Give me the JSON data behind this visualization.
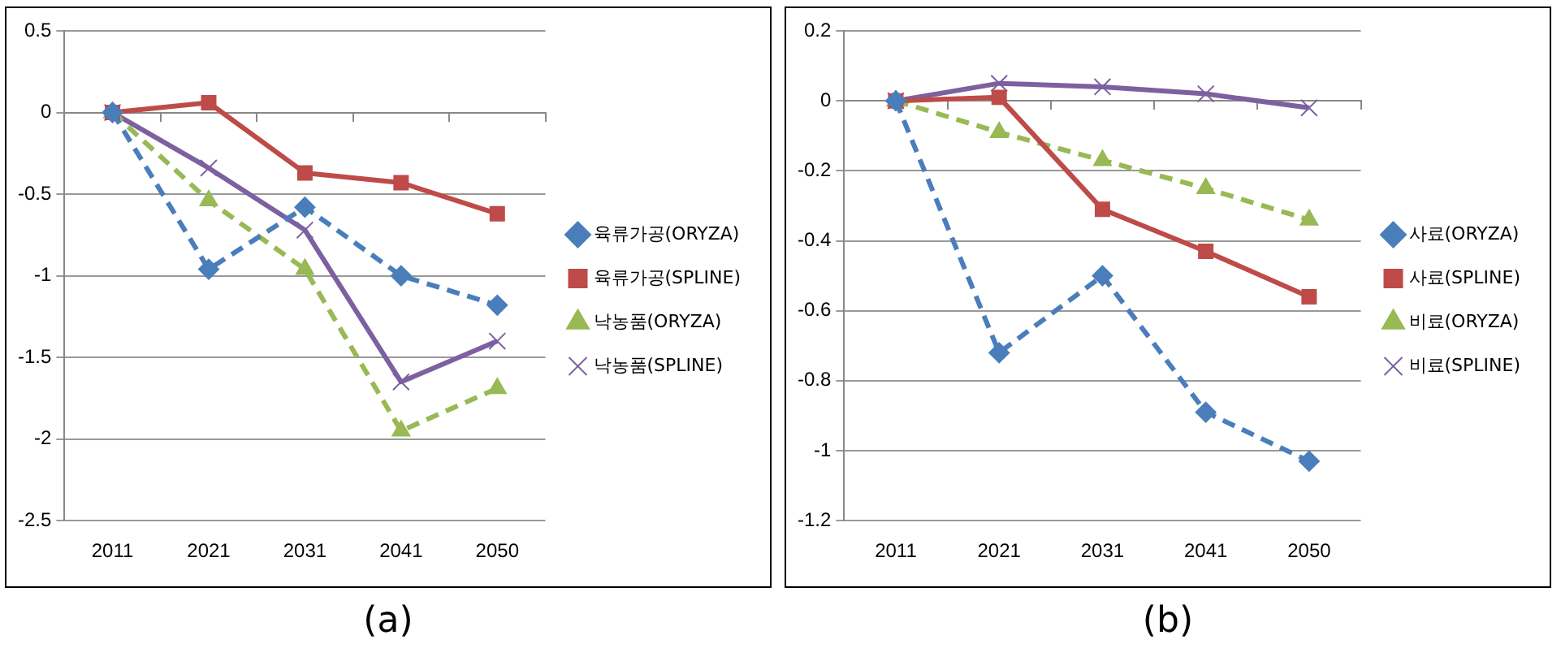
{
  "chart_data": [
    {
      "type": "line",
      "categories": [
        "2011",
        "2021",
        "2031",
        "2041",
        "2050"
      ],
      "ylim": [
        -2.5,
        0.5
      ],
      "yticks": [
        {
          "value": -2.5,
          "label": "-2.5"
        },
        {
          "value": -2,
          "label": "-2"
        },
        {
          "value": -1.5,
          "label": "-1.5"
        },
        {
          "value": -1,
          "label": "-1"
        },
        {
          "value": -0.5,
          "label": "-0.5"
        },
        0,
        0.5
      ],
      "grid": "y",
      "legend": "right",
      "annotations": [
        "(a)"
      ],
      "series": [
        {
          "name": "육류가공(ORYZA)",
          "color": "#4a7ebb",
          "marker": "diamond",
          "line_style": "dashed",
          "values": [
            0,
            -0.96,
            -0.58,
            -1.0,
            -1.18
          ]
        },
        {
          "name": "육류가공(SPLINE)",
          "color": "#be4b48",
          "marker": "square",
          "line_style": "solid",
          "values": [
            0,
            0.06,
            -0.37,
            -0.43,
            -0.62
          ]
        },
        {
          "name": "낙농품(ORYZA)",
          "color": "#98b954",
          "marker": "triangle",
          "line_style": "dashed",
          "values": [
            0,
            -0.54,
            -0.96,
            -1.95,
            -1.69
          ]
        },
        {
          "name": "낙농품(SPLINE)",
          "color": "#7d60a0",
          "marker": "cross",
          "line_style": "solid",
          "values": [
            0,
            -0.34,
            -0.72,
            -1.65,
            -1.4
          ]
        }
      ]
    },
    {
      "type": "line",
      "categories": [
        "2011",
        "2021",
        "2031",
        "2041",
        "2050"
      ],
      "ylim": [
        -1.2,
        0.2
      ],
      "yticks": [
        {
          "value": -1.2,
          "label": "-1.2"
        },
        {
          "value": -1,
          "label": "-1"
        },
        {
          "value": -0.8,
          "label": "-0.8"
        },
        {
          "value": -0.6,
          "label": "-0.6"
        },
        {
          "value": -0.4,
          "label": "-0.4"
        },
        {
          "value": -0.2,
          "label": "-0.2"
        },
        0,
        0.2
      ],
      "grid": "y",
      "legend": "right",
      "annotations": [
        "(b)"
      ],
      "series": [
        {
          "name": "사료(ORYZA)",
          "color": "#4a7ebb",
          "marker": "diamond",
          "line_style": "dashed",
          "values": [
            0,
            -0.72,
            -0.5,
            -0.89,
            -1.03
          ]
        },
        {
          "name": "사료(SPLINE)",
          "color": "#be4b48",
          "marker": "square",
          "line_style": "solid",
          "values": [
            0,
            0.01,
            -0.31,
            -0.43,
            -0.56
          ]
        },
        {
          "name": "비료(ORYZA)",
          "color": "#98b954",
          "marker": "triangle",
          "line_style": "dashed",
          "values": [
            0,
            -0.09,
            -0.17,
            -0.25,
            -0.34
          ]
        },
        {
          "name": "비료(SPLINE)",
          "color": "#7d60a0",
          "marker": "cross",
          "line_style": "solid",
          "values": [
            0,
            0.05,
            0.04,
            0.02,
            -0.02
          ]
        }
      ]
    }
  ]
}
